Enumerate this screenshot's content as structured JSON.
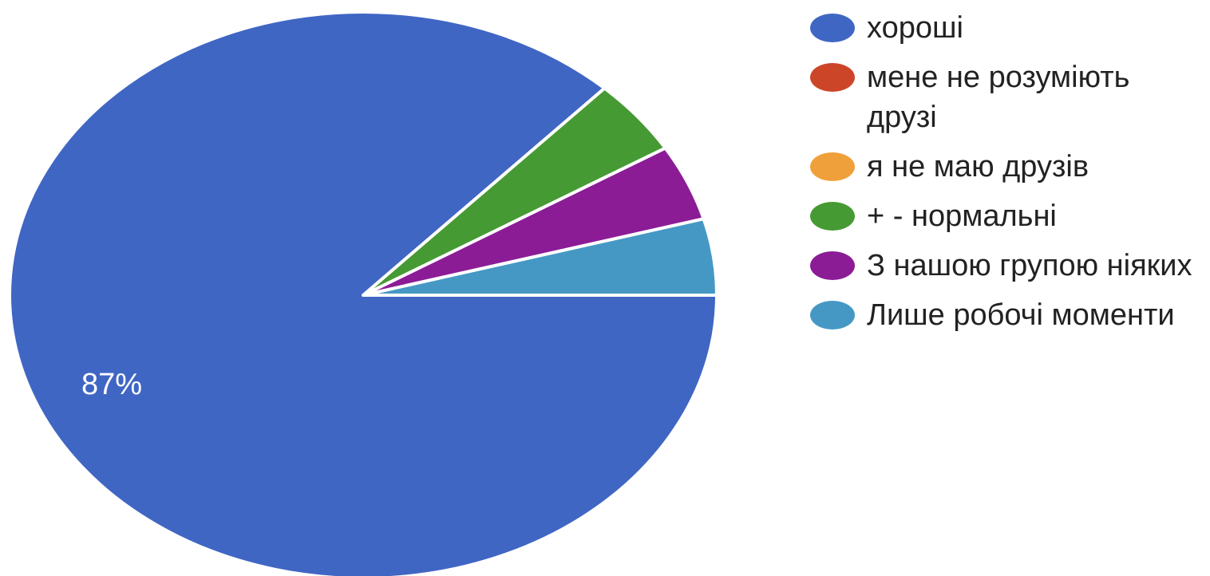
{
  "chart_data": {
    "type": "pie",
    "slices": [
      {
        "label": "хороші",
        "value": 87,
        "color": "#4066C4",
        "display_label": "87%"
      },
      {
        "label": "мене не розуміють друзі",
        "value": 0,
        "color": "#CC4528"
      },
      {
        "label": "я не маю друзів",
        "value": 0,
        "color": "#F0A03A"
      },
      {
        "label": "+ - нормальні",
        "value": 4.35,
        "color": "#469A34"
      },
      {
        "label": "З нашою групою ніяких",
        "value": 4.35,
        "color": "#8B1C96"
      },
      {
        "label": "Лише робочі моменти",
        "value": 4.35,
        "color": "#4598C4"
      }
    ],
    "legend_position": "right"
  }
}
